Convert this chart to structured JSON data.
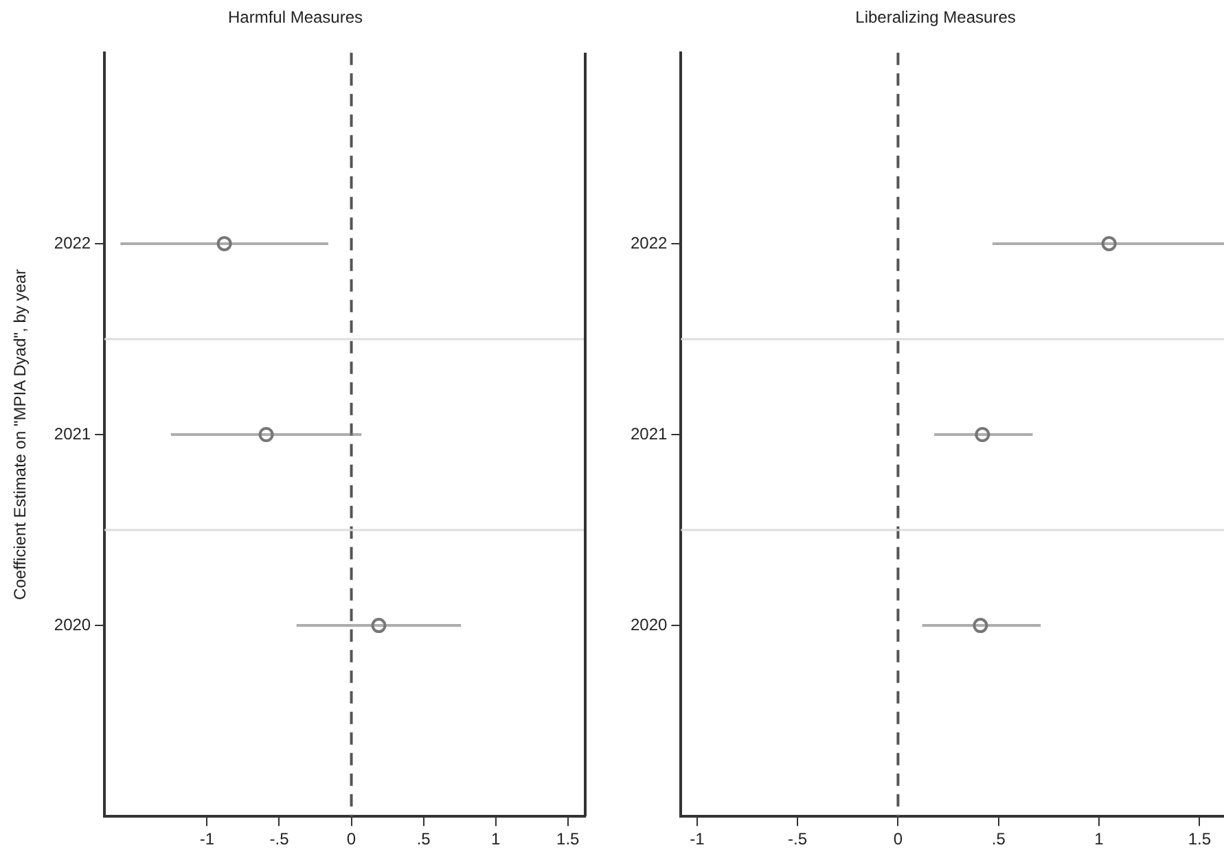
{
  "chart_data": [
    {
      "type": "scatter",
      "title": "Harmful Measures",
      "ylabel": "Coefficient Estimate on \"MPIA Dyad\", by year",
      "xlim": [
        -1.71,
        1.62
      ],
      "xticks": [
        {
          "value": -1,
          "label": "-1"
        },
        {
          "value": -0.5,
          "label": "-.5"
        },
        {
          "value": 0,
          "label": "0"
        },
        {
          "value": 0.5,
          "label": ".5"
        },
        {
          "value": 1,
          "label": "1"
        },
        {
          "value": 1.5,
          "label": "1.5"
        }
      ],
      "ylim": [
        2019,
        2023
      ],
      "yticks": [
        2020,
        2021,
        2022
      ],
      "marker": "circle",
      "grid": false,
      "series": [
        {
          "color": "#777777",
          "x": [
            -0.88,
            -0.59,
            0.19
          ],
          "values": [
            2022,
            2021,
            2020
          ],
          "xerrors": [
            [
              -1.6,
              -0.16
            ],
            [
              -1.25,
              0.07
            ],
            [
              -0.38,
              0.76
            ]
          ]
        }
      ],
      "ref_lines": [
        {
          "axis": "x",
          "value": 0,
          "color": "#555555",
          "line_style": "dashed"
        },
        {
          "axis": "y",
          "value": 2021.5,
          "color": "#dddddd"
        },
        {
          "axis": "y",
          "value": 2020.5,
          "color": "#dddddd"
        }
      ]
    },
    {
      "type": "scatter",
      "title": "Liberalizing Measures",
      "xlim": [
        -1.08,
        1.68
      ],
      "xticks": [
        {
          "value": -1,
          "label": "-1"
        },
        {
          "value": -0.5,
          "label": "-.5"
        },
        {
          "value": 0,
          "label": "0"
        },
        {
          "value": 0.5,
          "label": ".5"
        },
        {
          "value": 1,
          "label": "1"
        },
        {
          "value": 1.5,
          "label": "1.5"
        }
      ],
      "ylim": [
        2019,
        2023
      ],
      "yticks": [
        2020,
        2021,
        2022
      ],
      "marker": "circle",
      "grid": false,
      "series": [
        {
          "color": "#777777",
          "x": [
            1.05,
            0.42,
            0.41
          ],
          "values": [
            2022,
            2021,
            2020
          ],
          "xerrors": [
            [
              0.47,
              1.63
            ],
            [
              0.18,
              0.67
            ],
            [
              0.12,
              0.71
            ]
          ]
        }
      ],
      "ref_lines": [
        {
          "axis": "x",
          "value": 0,
          "color": "#555555",
          "line_style": "dashed"
        },
        {
          "axis": "y",
          "value": 2021.5,
          "color": "#dddddd"
        },
        {
          "axis": "y",
          "value": 2020.5,
          "color": "#dddddd"
        }
      ]
    }
  ]
}
